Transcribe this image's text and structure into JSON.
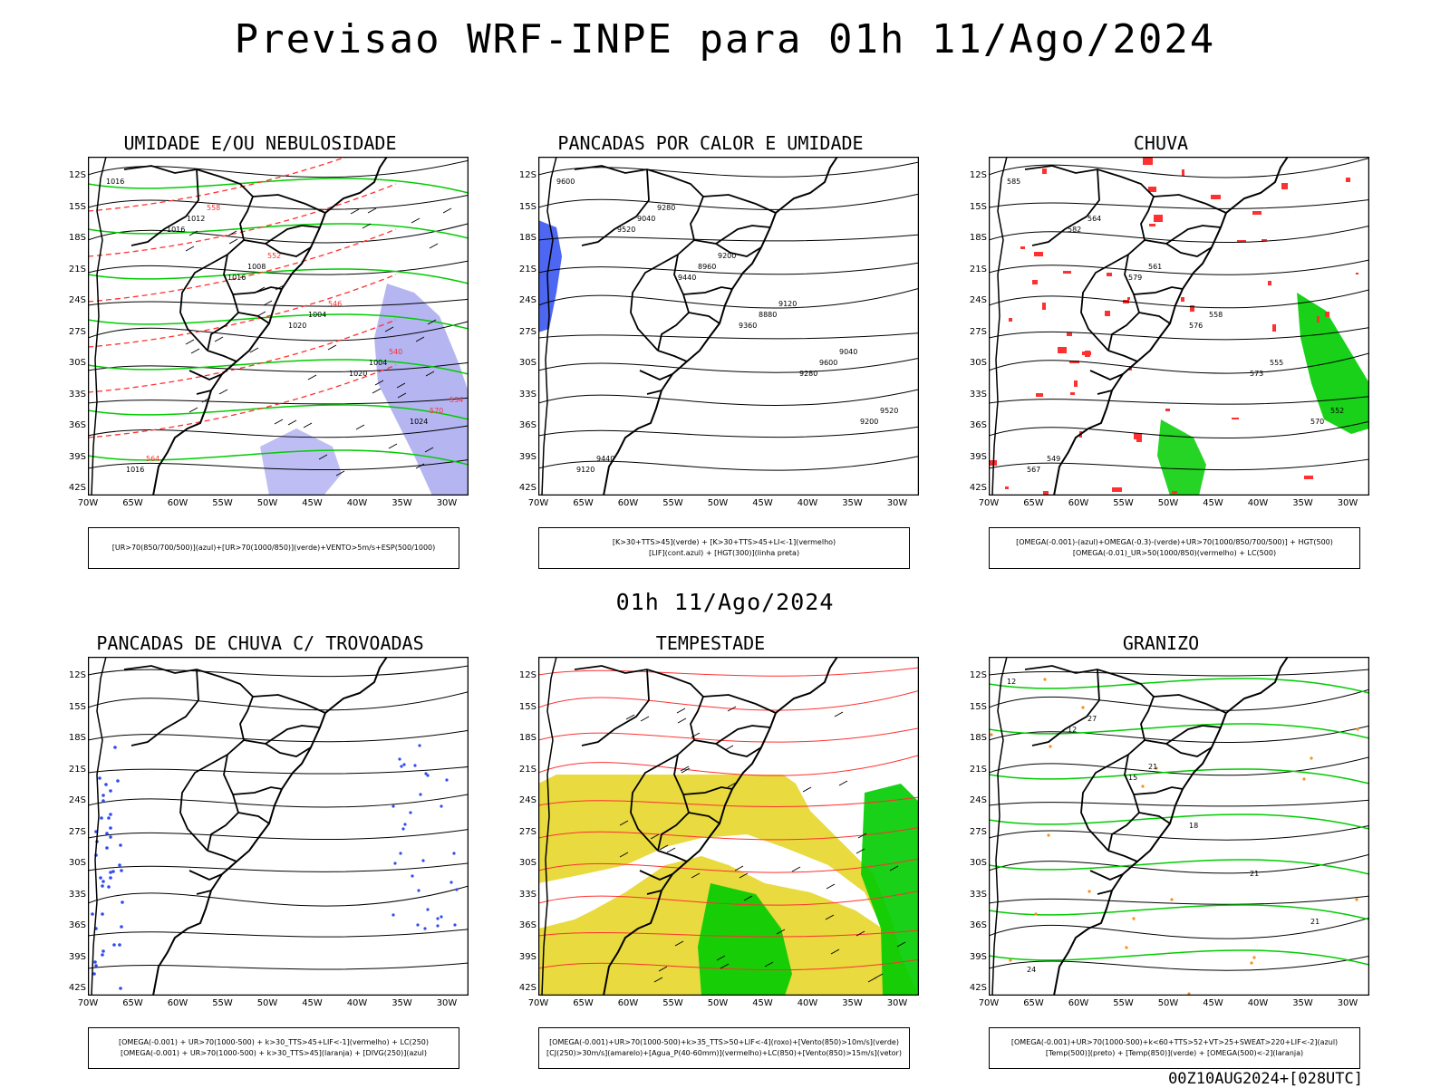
{
  "header": {
    "title": "Previsao WRF-INPE  para 01h 11/Ago/2024"
  },
  "middle_label": "01h 11/Ago/2024",
  "footer": "00Z10AUG2024+[028UTC]",
  "lat_labels": [
    "12S",
    "15S",
    "18S",
    "21S",
    "24S",
    "27S",
    "30S",
    "33S",
    "36S",
    "39S",
    "42S"
  ],
  "lon_labels": [
    "70W",
    "65W",
    "60W",
    "55W",
    "50W",
    "45W",
    "40W",
    "35W",
    "30W"
  ],
  "colors": {
    "blue": "#2e4cf0",
    "green": "#00cc00",
    "red": "#ff3030",
    "yellow": "#e6d62a",
    "lavender": "#a8a8f0",
    "orange": "#ff8c1a"
  },
  "panels": [
    {
      "title": "UMIDADE E/OU NEBULOSIDADE",
      "legend": [
        "[UR>70(850/700/500)](azul)+[UR>70(1000/850)](verde)+VENTO>5m/s+ESP(500/1000)"
      ],
      "contour_labels": [
        "1016",
        "1016",
        "1016",
        "1020",
        "1020",
        "1024",
        "1016",
        "1012",
        "1008",
        "1004",
        "1004",
        "570",
        "564",
        "558",
        "552",
        "546",
        "540",
        "534"
      ]
    },
    {
      "title": "PANCADAS POR CALOR E UMIDADE",
      "legend": [
        "[K>30+TTS>45](verde) + [K>30+TTS>45+LI<-1](vermelho)",
        "[LIF](cont.azul) + [HGT(300)](linha preta)"
      ],
      "contour_labels": [
        "9600",
        "9520",
        "9440",
        "9360",
        "9280",
        "9200",
        "9120",
        "9040",
        "8960",
        "8880",
        "9600",
        "9520",
        "9440",
        "9280",
        "9200",
        "9120",
        "9040"
      ]
    },
    {
      "title": "CHUVA",
      "legend": [
        "[OMEGA(-0.001)-(azul)+OMEGA(-0.3)-(verde)+UR>70(1000/850/700/500)] + HGT(500)",
        "[OMEGA(-0.01)_UR>50(1000/850)(vermelho) + LC(500)"
      ],
      "contour_labels": [
        "585",
        "582",
        "579",
        "576",
        "573",
        "570",
        "567",
        "564",
        "561",
        "558",
        "555",
        "552",
        "549"
      ]
    },
    {
      "title": "PANCADAS DE CHUVA C/ TROVOADAS",
      "legend": [
        "[OMEGA(-0.001) + UR>70(1000-500) + k>30_TTS>45+LIF<-1](vermelho) + LC(250)",
        "[OMEGA(-0.001) + UR>70(1000-500) + k>30_TTS>45](laranja) + [DIVG(250)](azul)"
      ],
      "contour_labels": []
    },
    {
      "title": "TEMPESTADE",
      "legend": [
        "[OMEGA(-0.001)+UR>70(1000-500)+k>35_TTS>50+LIF<-4](roxo)+[Vento(850)>10m/s](verde)",
        "[CJ(250)>30m/s](amarelo)+[Agua_P(40-60mm)](vermelho)+LC(850)+[Vento(850)>15m/s](vetor)"
      ],
      "contour_labels": []
    },
    {
      "title": "GRANIZO",
      "legend": [
        "[OMEGA(-0.001)+UR>70(1000-500)+k<60+TTS>52+VT>25+SWEAT>220+LIF<-2](azul)",
        "[Temp(500)](preto) + [Temp(850)](verde) + [OMEGA(500)<-2](laranja)"
      ],
      "contour_labels": [
        "12",
        "12",
        "15",
        "18",
        "21",
        "21",
        "24",
        "27",
        "21"
      ]
    }
  ]
}
